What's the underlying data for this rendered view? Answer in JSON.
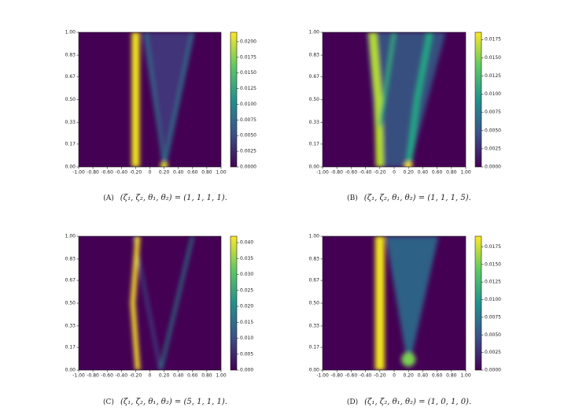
{
  "chart_data": [
    {
      "type": "heatmap",
      "caption_label": "(A)",
      "caption": "(ζ₁, ζ₂, θ₁, θ₂) = (1, 1, 1, 1).",
      "xlim": [
        -1,
        1
      ],
      "ylim": [
        0,
        1
      ],
      "xticks": [
        {
          "value": -1,
          "label": "-1.00"
        },
        {
          "value": -0.8,
          "label": "-0.80"
        },
        {
          "value": -0.6,
          "label": "-0.60"
        },
        {
          "value": -0.4,
          "label": "-0.40"
        },
        {
          "value": -0.2,
          "label": "-0.20"
        },
        0,
        {
          "value": 0.2,
          "label": "0.20"
        },
        {
          "value": 0.4,
          "label": "0.40"
        },
        {
          "value": 0.6,
          "label": "0.60"
        },
        {
          "value": 0.8,
          "label": "0.80"
        },
        {
          "value": 1,
          "label": "1.00"
        }
      ],
      "yticks": [
        {
          "value": 0,
          "label": "0.00"
        },
        {
          "value": 0.17,
          "label": "0.17"
        },
        {
          "value": 0.33,
          "label": "0.33"
        },
        {
          "value": 0.5,
          "label": "0.50"
        },
        {
          "value": 0.67,
          "label": "0.67"
        },
        {
          "value": 0.83,
          "label": "0.83"
        },
        {
          "value": 1,
          "label": "1.00"
        }
      ],
      "clim": [
        0,
        0.0215
      ],
      "cticks": [
        {
          "value": 0,
          "label": "0.0000"
        },
        {
          "value": 0.0025,
          "label": "0.0025"
        },
        {
          "value": 0.005,
          "label": "0.0050"
        },
        {
          "value": 0.0075,
          "label": "0.0075"
        },
        {
          "value": 0.01,
          "label": "0.0100"
        },
        {
          "value": 0.0125,
          "label": "0.0125"
        },
        {
          "value": 0.015,
          "label": "0.0150"
        },
        {
          "value": 0.0175,
          "label": "0.0175"
        },
        {
          "value": 0.02,
          "label": "0.0200"
        }
      ]
    },
    {
      "type": "heatmap",
      "caption_label": "(B)",
      "caption": "(ζ₁, ζ₂, θ₁, θ₂) = (1, 1, 1, 5).",
      "xlim": [
        -1,
        1
      ],
      "ylim": [
        0,
        1
      ],
      "xticks": [
        {
          "value": -1,
          "label": "-1.00"
        },
        {
          "value": -0.8,
          "label": "-0.80"
        },
        {
          "value": -0.6,
          "label": "-0.60"
        },
        {
          "value": -0.4,
          "label": "-0.40"
        },
        {
          "value": -0.2,
          "label": "-0.20"
        },
        0,
        {
          "value": 0.2,
          "label": "0.20"
        },
        {
          "value": 0.4,
          "label": "0.40"
        },
        {
          "value": 0.6,
          "label": "0.60"
        },
        {
          "value": 0.8,
          "label": "0.80"
        },
        {
          "value": 1,
          "label": "1.00"
        }
      ],
      "yticks": [
        {
          "value": 0,
          "label": "0.00"
        },
        {
          "value": 0.17,
          "label": "0.17"
        },
        {
          "value": 0.33,
          "label": "0.33"
        },
        {
          "value": 0.5,
          "label": "0.50"
        },
        {
          "value": 0.67,
          "label": "0.67"
        },
        {
          "value": 0.83,
          "label": "0.83"
        },
        {
          "value": 1,
          "label": "1.00"
        }
      ],
      "clim": [
        0,
        0.0185
      ],
      "cticks": [
        {
          "value": 0,
          "label": "0.0000"
        },
        {
          "value": 0.0025,
          "label": "0.0025"
        },
        {
          "value": 0.005,
          "label": "0.0050"
        },
        {
          "value": 0.0075,
          "label": "0.0075"
        },
        {
          "value": 0.01,
          "label": "0.0100"
        },
        {
          "value": 0.0125,
          "label": "0.0125"
        },
        {
          "value": 0.015,
          "label": "0.0150"
        },
        {
          "value": 0.0175,
          "label": "0.0175"
        }
      ]
    },
    {
      "type": "heatmap",
      "caption_label": "(C)",
      "caption": "(ζ₁, ζ₂, θ₁, θ₂) = (5, 1, 1, 1).",
      "xlim": [
        -1,
        1
      ],
      "ylim": [
        0,
        1
      ],
      "xticks": [
        {
          "value": -1,
          "label": "-1.00"
        },
        {
          "value": -0.8,
          "label": "-0.80"
        },
        {
          "value": -0.6,
          "label": "-0.60"
        },
        {
          "value": -0.4,
          "label": "-0.40"
        },
        {
          "value": -0.2,
          "label": "-0.20"
        },
        0,
        {
          "value": 0.2,
          "label": "0.20"
        },
        {
          "value": 0.4,
          "label": "0.40"
        },
        {
          "value": 0.6,
          "label": "0.60"
        },
        {
          "value": 0.8,
          "label": "0.80"
        },
        {
          "value": 1,
          "label": "1.00"
        }
      ],
      "yticks": [
        {
          "value": 0,
          "label": "0.00"
        },
        {
          "value": 0.17,
          "label": "0.17"
        },
        {
          "value": 0.33,
          "label": "0.33"
        },
        {
          "value": 0.5,
          "label": "0.50"
        },
        {
          "value": 0.67,
          "label": "0.67"
        },
        {
          "value": 0.83,
          "label": "0.83"
        },
        {
          "value": 1,
          "label": "1.00"
        }
      ],
      "clim": [
        0,
        0.042
      ],
      "cticks": [
        {
          "value": 0,
          "label": "0.000"
        },
        {
          "value": 0.005,
          "label": "0.005"
        },
        {
          "value": 0.01,
          "label": "0.010"
        },
        {
          "value": 0.015,
          "label": "0.015"
        },
        {
          "value": 0.02,
          "label": "0.020"
        },
        {
          "value": 0.025,
          "label": "0.025"
        },
        {
          "value": 0.03,
          "label": "0.030"
        },
        {
          "value": 0.035,
          "label": "0.035"
        },
        {
          "value": 0.04,
          "label": "0.040"
        }
      ]
    },
    {
      "type": "heatmap",
      "caption_label": "(D)",
      "caption": "(ζ₁, ζ₂, θ₁, θ₂) = (1, 0, 1, 0).",
      "xlim": [
        -1,
        1
      ],
      "ylim": [
        0,
        1
      ],
      "xticks": [
        {
          "value": -1,
          "label": "-1.00"
        },
        {
          "value": -0.8,
          "label": "-0.80"
        },
        {
          "value": -0.6,
          "label": "-0.60"
        },
        {
          "value": -0.4,
          "label": "-0.40"
        },
        {
          "value": -0.2,
          "label": "-0.20"
        },
        0,
        {
          "value": 0.2,
          "label": "0.20"
        },
        {
          "value": 0.4,
          "label": "0.40"
        },
        {
          "value": 0.6,
          "label": "0.60"
        },
        {
          "value": 0.8,
          "label": "0.80"
        },
        {
          "value": 1,
          "label": "1.00"
        }
      ],
      "yticks": [
        {
          "value": 0,
          "label": "0.00"
        },
        {
          "value": 0.17,
          "label": "0.17"
        },
        {
          "value": 0.33,
          "label": "0.33"
        },
        {
          "value": 0.5,
          "label": "0.50"
        },
        {
          "value": 0.67,
          "label": "0.67"
        },
        {
          "value": 0.83,
          "label": "0.83"
        },
        {
          "value": 1,
          "label": "1.00"
        }
      ],
      "clim": [
        0,
        0.019
      ],
      "cticks": [
        {
          "value": 0,
          "label": "0.0000"
        },
        {
          "value": 0.0025,
          "label": "0.0025"
        },
        {
          "value": 0.005,
          "label": "0.0050"
        },
        {
          "value": 0.0075,
          "label": "0.0075"
        },
        {
          "value": 0.01,
          "label": "0.0100"
        },
        {
          "value": 0.0125,
          "label": "0.0125"
        },
        {
          "value": 0.015,
          "label": "0.0150"
        },
        {
          "value": 0.0175,
          "label": "0.0175"
        }
      ]
    }
  ]
}
